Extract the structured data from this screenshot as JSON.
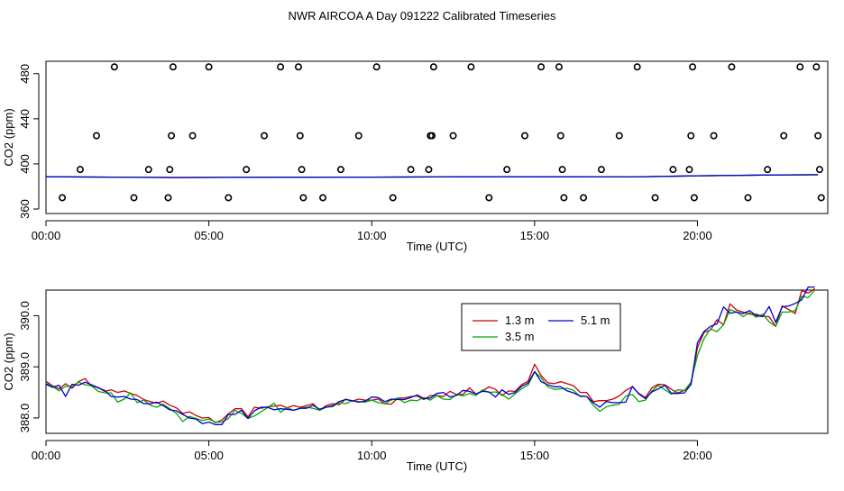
{
  "title": "NWR AIRCOA A  Day 091222  Calibrated Timeseries",
  "chart_data": [
    {
      "type": "scatter",
      "xlabel": "Time (UTC)",
      "ylabel": "CO2 (ppm)",
      "xlim": [
        0,
        24
      ],
      "ylim": [
        356,
        491
      ],
      "x_ticks": [
        0,
        5,
        10,
        15,
        20
      ],
      "x_tick_labels": [
        "00:00",
        "05:00",
        "10:00",
        "15:00",
        "20:00"
      ],
      "y_ticks": [
        360,
        400,
        440,
        480
      ],
      "y_tick_labels": [
        "360",
        "400",
        "440",
        "480"
      ],
      "grid": false,
      "series": [
        {
          "color": "#cc0000",
          "x": [
            0,
            2,
            4,
            6,
            8,
            10,
            12,
            14,
            16,
            18,
            20,
            22,
            23.7
          ],
          "y": [
            388.6,
            388.3,
            388.0,
            388.1,
            388.2,
            388.3,
            388.5,
            388.6,
            388.6,
            388.4,
            389.5,
            390.0,
            390.4
          ]
        },
        {
          "color": "#00aa00",
          "x": [
            0,
            2,
            4,
            6,
            8,
            10,
            12,
            14,
            16,
            18,
            20,
            22,
            23.7
          ],
          "y": [
            388.6,
            388.3,
            387.9,
            388.1,
            388.2,
            388.3,
            388.5,
            388.5,
            388.5,
            388.4,
            389.4,
            390.0,
            390.3
          ]
        },
        {
          "color": "#0000cc",
          "x": [
            0,
            2,
            4,
            6,
            8,
            10,
            12,
            14,
            16,
            18,
            20,
            22,
            23.7
          ],
          "y": [
            388.6,
            388.3,
            387.9,
            388.1,
            388.2,
            388.3,
            388.4,
            388.6,
            388.5,
            388.4,
            389.5,
            390.1,
            390.4
          ]
        },
        {
          "color": "#000000",
          "marker": "open-circle",
          "x": [
            0.5,
            1.05,
            1.55,
            2.1,
            2.7,
            3.15,
            3.75,
            3.8,
            3.85,
            3.9,
            4.5,
            5.0,
            5.6,
            6.15,
            6.7,
            7.2,
            7.75,
            7.8,
            7.85,
            7.9,
            8.5,
            9.05,
            9.6,
            10.15,
            10.65,
            11.2,
            11.75,
            11.8,
            11.85,
            11.9,
            12.5,
            13.05,
            13.6,
            14.15,
            14.7,
            15.2,
            15.75,
            15.8,
            15.85,
            15.9,
            16.5,
            17.05,
            17.6,
            18.15,
            18.7,
            19.25,
            19.75,
            19.8,
            19.85,
            19.9,
            20.5,
            21.05,
            21.55,
            22.15,
            22.65,
            23.15,
            23.65,
            23.7,
            23.75,
            23.8
          ],
          "y": [
            370,
            395,
            425,
            486,
            370,
            395,
            370,
            395,
            425,
            486,
            425,
            486,
            370,
            395,
            425,
            486,
            486,
            425,
            395,
            370,
            370,
            395,
            425,
            486,
            370,
            395,
            395,
            425,
            425,
            486,
            425,
            486,
            370,
            395,
            425,
            486,
            486,
            425,
            395,
            370,
            370,
            395,
            425,
            486,
            370,
            395,
            395,
            425,
            486,
            370,
            425,
            486,
            370,
            395,
            425,
            486,
            486,
            425,
            395,
            370
          ]
        }
      ]
    },
    {
      "type": "line",
      "xlabel": "Time (UTC)",
      "ylabel": "CO2 (ppm)",
      "xlim": [
        0,
        24
      ],
      "ylim": [
        387.7,
        390.5
      ],
      "x_ticks": [
        0,
        5,
        10,
        15,
        20
      ],
      "x_tick_labels": [
        "00:00",
        "05:00",
        "10:00",
        "15:00",
        "20:00"
      ],
      "y_ticks": [
        388,
        389,
        390
      ],
      "y_tick_labels": [
        "388.0",
        "389.0",
        "390.0"
      ],
      "grid": false,
      "legend_position": "top-right",
      "x": [
        0,
        0.2,
        0.4,
        0.6,
        0.8,
        1,
        1.2,
        1.4,
        1.6,
        1.8,
        2,
        2.2,
        2.4,
        2.6,
        2.8,
        3,
        3.2,
        3.4,
        3.6,
        3.8,
        4,
        4.2,
        4.4,
        4.6,
        4.8,
        5,
        5.2,
        5.4,
        5.6,
        5.8,
        6,
        6.2,
        6.4,
        6.6,
        6.8,
        7,
        7.2,
        7.4,
        7.6,
        7.8,
        8,
        8.2,
        8.4,
        8.6,
        8.8,
        9,
        9.2,
        9.4,
        9.6,
        9.8,
        10,
        10.2,
        10.4,
        10.6,
        10.8,
        11,
        11.2,
        11.4,
        11.6,
        11.8,
        12,
        12.2,
        12.4,
        12.6,
        12.8,
        13,
        13.2,
        13.4,
        13.6,
        13.8,
        14,
        14.2,
        14.4,
        14.6,
        14.8,
        15,
        15.2,
        15.4,
        15.6,
        15.8,
        16,
        16.2,
        16.4,
        16.6,
        16.8,
        17,
        17.2,
        17.4,
        17.6,
        17.8,
        18,
        18.2,
        18.4,
        18.6,
        18.8,
        19,
        19.2,
        19.4,
        19.6,
        19.8,
        20,
        20.2,
        20.4,
        20.6,
        20.8,
        21,
        21.2,
        21.4,
        21.6,
        21.8,
        22,
        22.2,
        22.4,
        22.6,
        22.8,
        23,
        23.2,
        23.4,
        23.6
      ],
      "series": [
        {
          "name": "1.3 m",
          "color": "#cc0000",
          "values": [
            388.72,
            388.63,
            388.57,
            388.67,
            388.58,
            388.71,
            388.77,
            388.62,
            388.6,
            388.52,
            388.55,
            388.5,
            388.53,
            388.48,
            388.44,
            388.36,
            388.32,
            388.29,
            388.33,
            388.25,
            388.2,
            388.09,
            388.12,
            388.05,
            388.0,
            388.01,
            387.91,
            387.96,
            388.08,
            388.18,
            388.18,
            388.02,
            388.21,
            388.19,
            388.22,
            388.23,
            388.25,
            388.2,
            388.24,
            388.21,
            388.24,
            388.28,
            388.15,
            388.24,
            388.28,
            388.26,
            388.37,
            388.33,
            388.37,
            388.35,
            388.35,
            388.37,
            388.28,
            388.27,
            388.39,
            388.39,
            388.42,
            388.43,
            388.36,
            388.44,
            388.44,
            388.42,
            388.52,
            388.46,
            388.46,
            388.59,
            388.47,
            388.53,
            388.61,
            388.56,
            388.44,
            388.53,
            388.52,
            388.65,
            388.72,
            389.05,
            388.83,
            388.69,
            388.67,
            388.71,
            388.67,
            388.63,
            388.5,
            388.5,
            388.32,
            388.34,
            388.34,
            388.37,
            388.43,
            388.54,
            388.61,
            388.48,
            388.4,
            388.59,
            388.66,
            388.65,
            388.56,
            388.49,
            388.54,
            388.65,
            389.38,
            389.67,
            389.72,
            389.92,
            389.82,
            390.23,
            390.11,
            390.07,
            390.03,
            390.03,
            389.99,
            389.98,
            389.79,
            390.19,
            390.12,
            390.04,
            390.49,
            390.44,
            390.53
          ]
        },
        {
          "name": "3.5 m",
          "color": "#00aa00",
          "values": [
            388.68,
            388.62,
            388.53,
            388.62,
            388.62,
            388.7,
            388.65,
            388.63,
            388.52,
            388.49,
            388.49,
            388.31,
            388.37,
            388.49,
            388.3,
            388.35,
            388.25,
            388.21,
            388.27,
            388.18,
            388.09,
            387.93,
            388.03,
            387.99,
            387.95,
            387.98,
            387.92,
            387.92,
            387.99,
            388.15,
            388.09,
            387.99,
            388.04,
            388.12,
            388.2,
            388.29,
            388.11,
            388.2,
            388.15,
            388.19,
            388.21,
            388.19,
            388.15,
            388.21,
            388.22,
            388.3,
            388.28,
            388.34,
            388.32,
            388.31,
            388.35,
            388.3,
            388.28,
            388.35,
            388.39,
            388.3,
            388.35,
            388.34,
            388.4,
            388.35,
            388.44,
            388.37,
            388.36,
            388.46,
            388.43,
            388.48,
            388.44,
            388.55,
            388.5,
            388.51,
            388.46,
            388.37,
            388.47,
            388.57,
            388.64,
            388.9,
            388.79,
            388.61,
            388.56,
            388.57,
            388.58,
            388.54,
            388.42,
            388.42,
            388.25,
            388.13,
            388.22,
            388.25,
            388.27,
            388.43,
            388.46,
            388.32,
            388.35,
            388.53,
            388.64,
            388.55,
            388.47,
            388.55,
            388.54,
            388.7,
            389.22,
            389.55,
            389.74,
            389.69,
            389.82,
            390.12,
            390.07,
            389.98,
            390.06,
            389.97,
            390.03,
            389.88,
            389.79,
            390.07,
            390.07,
            390.1,
            390.38,
            390.35,
            390.5
          ]
        },
        {
          "name": "5.1 m",
          "color": "#0000cc",
          "values": [
            388.66,
            388.6,
            388.64,
            388.42,
            388.66,
            388.64,
            388.7,
            388.65,
            388.59,
            388.54,
            388.42,
            388.41,
            388.42,
            388.37,
            388.36,
            388.28,
            388.28,
            388.31,
            388.24,
            388.16,
            388.14,
            388.07,
            388.0,
            387.98,
            387.89,
            387.92,
            387.87,
            387.87,
            388.07,
            388.07,
            388.15,
            387.99,
            388.14,
            388.21,
            388.21,
            388.16,
            388.18,
            388.17,
            388.15,
            388.19,
            388.19,
            388.25,
            388.17,
            388.21,
            388.24,
            388.32,
            388.36,
            388.34,
            388.31,
            388.33,
            388.41,
            388.4,
            388.32,
            388.37,
            388.36,
            388.36,
            388.4,
            388.45,
            388.38,
            388.39,
            388.48,
            388.5,
            388.41,
            388.44,
            388.54,
            388.52,
            388.47,
            388.52,
            388.51,
            388.41,
            388.55,
            388.46,
            388.5,
            388.62,
            388.68,
            388.91,
            388.71,
            388.65,
            388.61,
            388.61,
            388.53,
            388.49,
            388.43,
            388.42,
            388.3,
            388.21,
            388.32,
            388.3,
            388.3,
            388.31,
            388.62,
            388.47,
            388.38,
            388.51,
            388.57,
            388.64,
            388.48,
            388.48,
            388.49,
            388.66,
            389.47,
            389.69,
            389.79,
            389.84,
            390.17,
            390.05,
            390.07,
            390.04,
            390.1,
            390.0,
            389.98,
            390.18,
            389.87,
            390.17,
            390.19,
            390.24,
            390.31,
            390.56,
            390.56
          ]
        }
      ]
    }
  ]
}
